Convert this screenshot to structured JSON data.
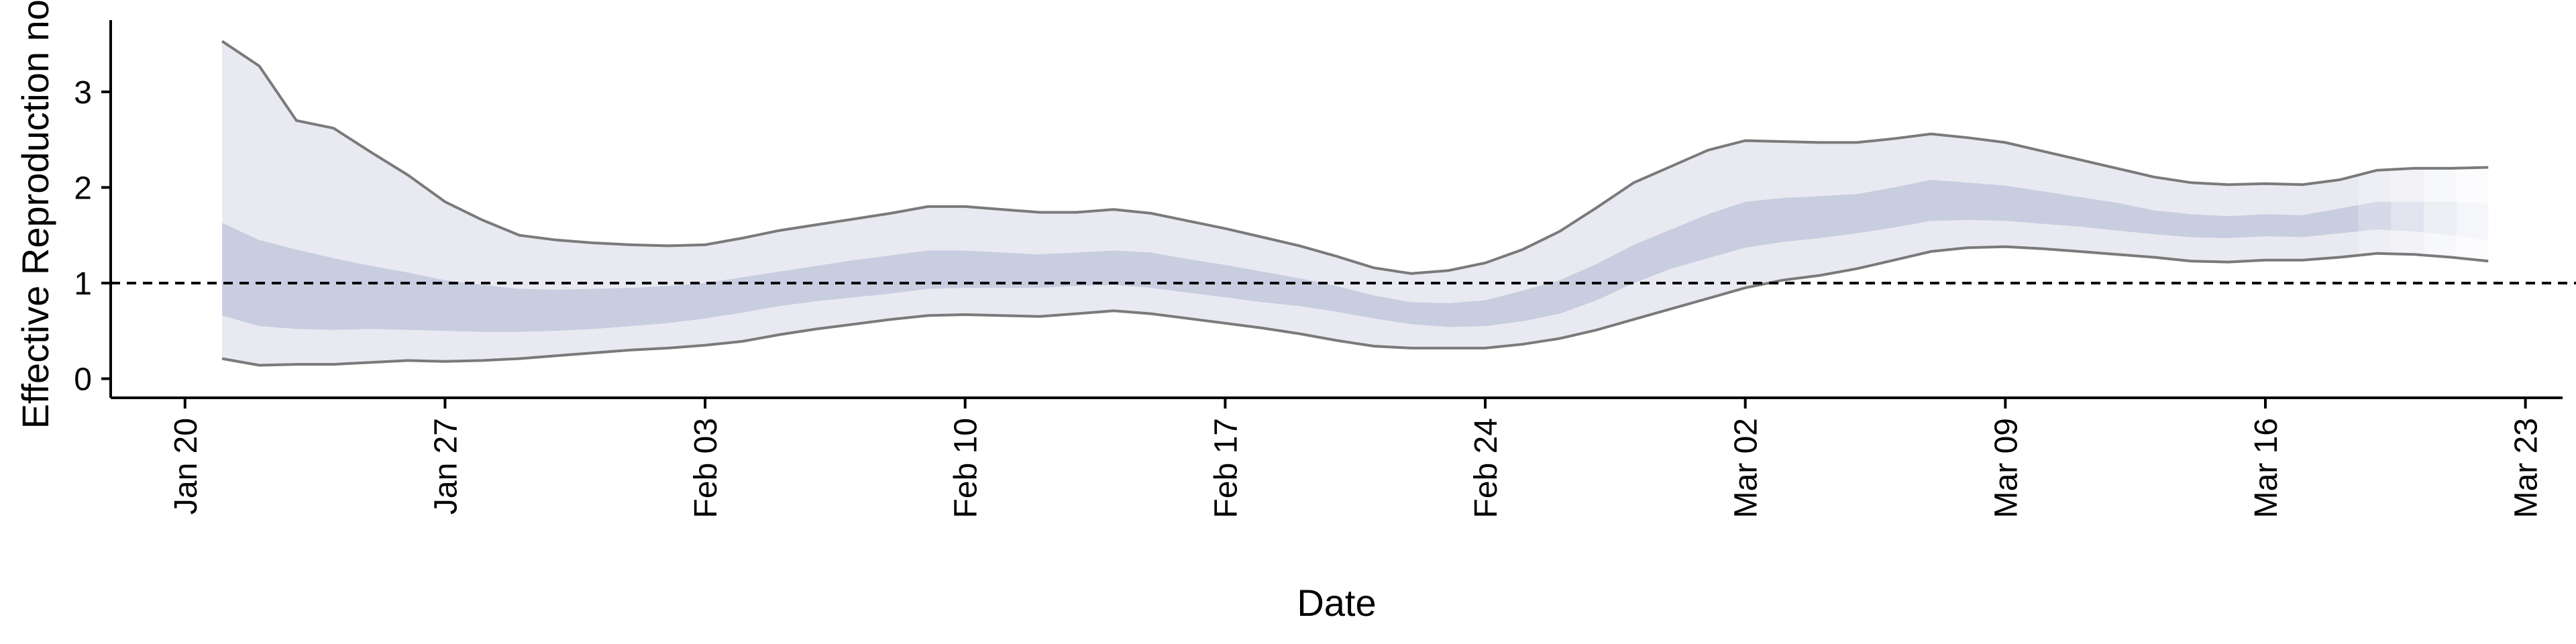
{
  "chart_data": {
    "type": "area",
    "xlabel": "Date",
    "ylabel": "Effective Reproduction no.",
    "x_range": [
      "2020-01-18",
      "2020-03-24"
    ],
    "ylim": [
      -0.2,
      3.75
    ],
    "y_ticks": [
      0,
      1,
      2,
      3
    ],
    "x_ticks": [
      {
        "date": "2020-01-20",
        "label": "Jan 20"
      },
      {
        "date": "2020-01-27",
        "label": "Jan 27"
      },
      {
        "date": "2020-02-03",
        "label": "Feb 03"
      },
      {
        "date": "2020-02-10",
        "label": "Feb 10"
      },
      {
        "date": "2020-02-17",
        "label": "Feb 17"
      },
      {
        "date": "2020-02-24",
        "label": "Feb 24"
      },
      {
        "date": "2020-03-02",
        "label": "Mar 02"
      },
      {
        "date": "2020-03-09",
        "label": "Mar 09"
      },
      {
        "date": "2020-03-16",
        "label": "Mar 16"
      },
      {
        "date": "2020-03-23",
        "label": "Mar 23"
      }
    ],
    "reference_line": 1,
    "grid": false,
    "colors": {
      "outer_band": "#e9eaf1",
      "inner_band": "#c8cde0",
      "bound_line": "#7a7a7a",
      "reference_line": "#000000"
    },
    "series": [
      {
        "dates": [
          "2020-01-21",
          "2020-01-22",
          "2020-01-23",
          "2020-01-24",
          "2020-01-25",
          "2020-01-26",
          "2020-01-27",
          "2020-01-28",
          "2020-01-29",
          "2020-01-30",
          "2020-01-31",
          "2020-02-01",
          "2020-02-02",
          "2020-02-03",
          "2020-02-04",
          "2020-02-05",
          "2020-02-06",
          "2020-02-07",
          "2020-02-08",
          "2020-02-09",
          "2020-02-10",
          "2020-02-11",
          "2020-02-12",
          "2020-02-13",
          "2020-02-14",
          "2020-02-15",
          "2020-02-16",
          "2020-02-17",
          "2020-02-18",
          "2020-02-19",
          "2020-02-20",
          "2020-02-21",
          "2020-02-22",
          "2020-02-23",
          "2020-02-24",
          "2020-02-25",
          "2020-02-26",
          "2020-02-27",
          "2020-02-28",
          "2020-02-29",
          "2020-03-01",
          "2020-03-02",
          "2020-03-03",
          "2020-03-04",
          "2020-03-05",
          "2020-03-06",
          "2020-03-07",
          "2020-03-08",
          "2020-03-09",
          "2020-03-10",
          "2020-03-11",
          "2020-03-12",
          "2020-03-13",
          "2020-03-14",
          "2020-03-15",
          "2020-03-16",
          "2020-03-17",
          "2020-03-18",
          "2020-03-19",
          "2020-03-20",
          "2020-03-21",
          "2020-03-22"
        ],
        "upper90": [
          3.53,
          3.27,
          2.7,
          2.62,
          2.37,
          2.13,
          1.85,
          1.66,
          1.5,
          1.45,
          1.42,
          1.4,
          1.39,
          1.4,
          1.47,
          1.55,
          1.61,
          1.67,
          1.73,
          1.8,
          1.8,
          1.77,
          1.74,
          1.74,
          1.77,
          1.73,
          1.65,
          1.57,
          1.48,
          1.39,
          1.28,
          1.16,
          1.1,
          1.13,
          1.21,
          1.35,
          1.54,
          1.79,
          2.05,
          2.22,
          2.39,
          2.49,
          2.48,
          2.47,
          2.47,
          2.51,
          2.56,
          2.52,
          2.47,
          2.38,
          2.29,
          2.2,
          2.11,
          2.05,
          2.03,
          2.04,
          2.03,
          2.08,
          2.18,
          2.2,
          2.2,
          2.21
        ],
        "upper50": [
          1.63,
          1.45,
          1.35,
          1.26,
          1.18,
          1.11,
          1.03,
          0.98,
          0.94,
          0.93,
          0.94,
          0.95,
          0.97,
          1.0,
          1.06,
          1.12,
          1.18,
          1.24,
          1.29,
          1.34,
          1.34,
          1.32,
          1.3,
          1.32,
          1.34,
          1.32,
          1.25,
          1.19,
          1.12,
          1.05,
          0.97,
          0.87,
          0.8,
          0.79,
          0.82,
          0.92,
          1.03,
          1.2,
          1.4,
          1.56,
          1.72,
          1.85,
          1.89,
          1.91,
          1.93,
          2.0,
          2.08,
          2.05,
          2.02,
          1.96,
          1.9,
          1.84,
          1.76,
          1.72,
          1.7,
          1.72,
          1.71,
          1.78,
          1.85,
          1.85,
          1.85,
          1.83
        ],
        "lower50": [
          0.66,
          0.55,
          0.52,
          0.51,
          0.52,
          0.51,
          0.5,
          0.49,
          0.49,
          0.5,
          0.52,
          0.55,
          0.58,
          0.63,
          0.69,
          0.76,
          0.81,
          0.85,
          0.89,
          0.94,
          0.95,
          0.95,
          0.95,
          0.97,
          0.98,
          0.95,
          0.9,
          0.85,
          0.8,
          0.76,
          0.7,
          0.63,
          0.57,
          0.54,
          0.55,
          0.6,
          0.68,
          0.82,
          1.0,
          1.15,
          1.26,
          1.37,
          1.43,
          1.47,
          1.52,
          1.58,
          1.65,
          1.66,
          1.65,
          1.62,
          1.59,
          1.55,
          1.51,
          1.48,
          1.47,
          1.49,
          1.48,
          1.52,
          1.56,
          1.54,
          1.5,
          1.45
        ],
        "lower90": [
          0.21,
          0.14,
          0.15,
          0.15,
          0.17,
          0.19,
          0.18,
          0.19,
          0.21,
          0.24,
          0.27,
          0.3,
          0.32,
          0.35,
          0.39,
          0.46,
          0.52,
          0.57,
          0.62,
          0.66,
          0.67,
          0.66,
          0.65,
          0.68,
          0.71,
          0.68,
          0.63,
          0.58,
          0.53,
          0.47,
          0.4,
          0.34,
          0.32,
          0.32,
          0.32,
          0.36,
          0.42,
          0.51,
          0.62,
          0.73,
          0.84,
          0.95,
          1.03,
          1.08,
          1.15,
          1.24,
          1.33,
          1.37,
          1.38,
          1.36,
          1.33,
          1.3,
          1.27,
          1.23,
          1.22,
          1.24,
          1.24,
          1.27,
          1.31,
          1.3,
          1.27,
          1.23
        ]
      }
    ]
  }
}
